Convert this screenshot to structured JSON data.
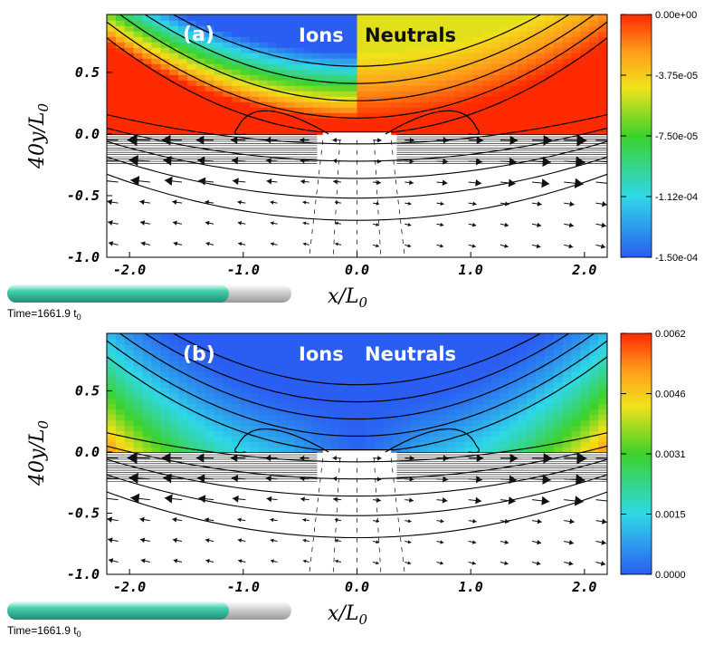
{
  "chart_data": [
    {
      "type": "heatmap",
      "panel_label": "(a)",
      "region_labels": {
        "left": "Ions",
        "right": "Neutrals"
      },
      "xlabel": "x/L",
      "xlabel_sub": "0",
      "ylabel": "40y/L",
      "ylabel_sub": "0",
      "xlim": [
        -2.2,
        2.2
      ],
      "ylim": [
        -1.0,
        0.97
      ],
      "xticks": [
        "-2.0",
        "-1.0",
        "0.0",
        "1.0",
        "2.0"
      ],
      "xtick_values": [
        -2.0,
        -1.0,
        0.0,
        1.0,
        2.0
      ],
      "yticks": [
        "0.5",
        "0.0",
        "-0.5",
        "-1.0"
      ],
      "ytick_values": [
        0.5,
        0.0,
        -0.5,
        -1.0
      ],
      "colorbar": {
        "min": -0.00015,
        "max": 0.0,
        "ticks": [
          "0.00e+00",
          "-3.75e-05",
          "-7.50e-05",
          "-1.12e-04",
          "-1.50e-04"
        ],
        "colormap": "rainbow"
      },
      "time_label": "Time=1661.9 t",
      "time_sub": "0",
      "time_progress": 0.78
    },
    {
      "type": "heatmap",
      "panel_label": "(b)",
      "region_labels": {
        "left": "Ions",
        "right": "Neutrals"
      },
      "xlabel": "x/L",
      "xlabel_sub": "0",
      "ylabel": "40y/L",
      "ylabel_sub": "0",
      "xlim": [
        -2.2,
        2.2
      ],
      "ylim": [
        -1.0,
        0.97
      ],
      "xticks": [
        "-2.0",
        "-1.0",
        "0.0",
        "1.0",
        "2.0"
      ],
      "xtick_values": [
        -2.0,
        -1.0,
        0.0,
        1.0,
        2.0
      ],
      "yticks": [
        "0.5",
        "0.0",
        "-0.5",
        "-1.0"
      ],
      "ytick_values": [
        0.5,
        0.0,
        -0.5,
        -1.0
      ],
      "colorbar": {
        "min": 0.0,
        "max": 0.0062,
        "ticks": [
          "0.0062",
          "0.0046",
          "0.0031",
          "0.0015",
          "0.0000"
        ],
        "colormap": "rainbow"
      },
      "time_label": "Time=1661.9 t",
      "time_sub": "0",
      "time_progress": 0.78
    }
  ],
  "colors": {
    "red": "#ff2a00",
    "orange": "#ff9a1a",
    "yellow": "#f2e21a",
    "green": "#3cd22a",
    "cyan": "#2fd8e8",
    "blue": "#2a5ef2",
    "progress_fill": "#3fc9a8",
    "progress_empty": "#cfcfcf",
    "neutrals_text": "#111111",
    "neutrals_text_b": "#ffffff"
  }
}
